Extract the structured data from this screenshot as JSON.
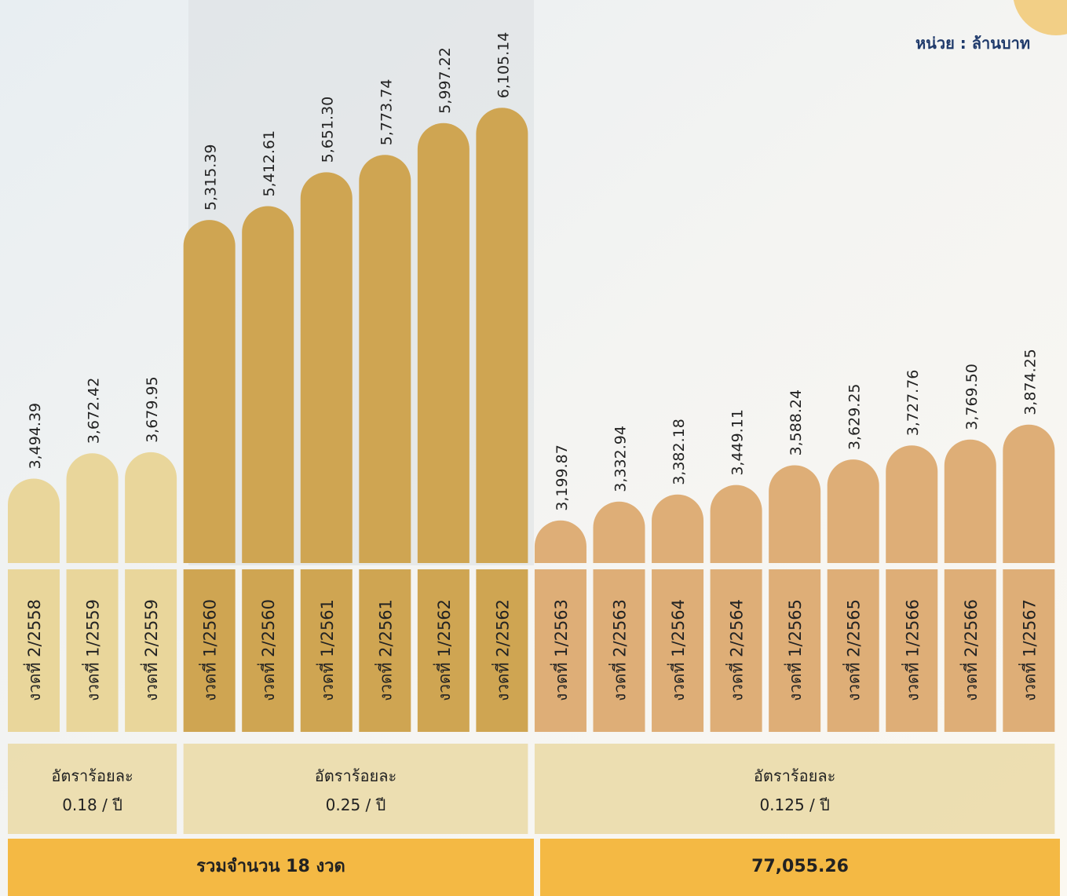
{
  "chart_data": {
    "type": "bar",
    "unit": "หน่วย : ล้านบาท",
    "ylim": [
      2900,
      6300
    ],
    "series": [
      {
        "color": "#e9d69b",
        "categories": [
          "งวดที่ 2/2558",
          "งวดที่ 1/2559",
          "งวดที่ 2/2559"
        ],
        "values": [
          3494.39,
          3672.42,
          3679.95
        ],
        "value_labels": [
          "3,494.39",
          "3,672.42",
          "3,679.95"
        ],
        "rate_title": "อัตราร้อยละ",
        "rate": "0.18 / ปี"
      },
      {
        "color": "#cfa552",
        "categories": [
          "งวดที่ 1/2560",
          "งวดที่ 2/2560",
          "งวดที่ 1/2561",
          "งวดที่ 2/2561",
          "งวดที่ 1/2562",
          "งวดที่ 2/2562"
        ],
        "values": [
          5315.39,
          5412.61,
          5651.3,
          5773.74,
          5997.22,
          6105.14
        ],
        "value_labels": [
          "5,315.39",
          "5,412.61",
          "5,651.30",
          "5,773.74",
          "5,997.22",
          "6,105.14"
        ],
        "rate_title": "อัตราร้อยละ",
        "rate": "0.25 / ปี"
      },
      {
        "color": "#deae77",
        "categories": [
          "งวดที่ 1/2563",
          "งวดที่ 2/2563",
          "งวดที่ 1/2564",
          "งวดที่ 2/2564",
          "งวดที่ 1/2565",
          "งวดที่ 2/2565",
          "งวดที่ 1/2566",
          "งวดที่ 2/2566",
          "งวดที่ 1/2567"
        ],
        "values": [
          3199.87,
          3332.94,
          3382.18,
          3449.11,
          3588.24,
          3629.25,
          3727.76,
          3769.5,
          3874.25
        ],
        "value_labels": [
          "3,199.87",
          "3,332.94",
          "3,382.18",
          "3,449.11",
          "3,588.24",
          "3,629.25",
          "3,727.76",
          "3,769.50",
          "3,874.25"
        ],
        "rate_title": "อัตราร้อยละ",
        "rate": "0.125 / ปี"
      }
    ],
    "footer": [
      "รวมจำนวน 18 งวด",
      "77,055.26"
    ]
  }
}
